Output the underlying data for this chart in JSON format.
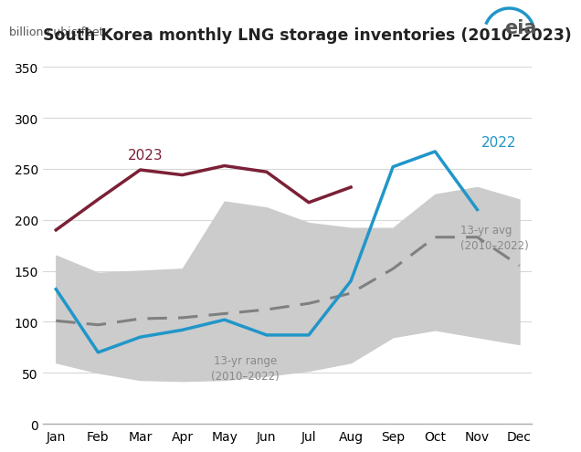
{
  "title": "South Korea monthly LNG storage inventories (2010–2023)",
  "ylabel": "billion cubic feet",
  "months": [
    "Jan",
    "Feb",
    "Mar",
    "Apr",
    "May",
    "Jun",
    "Jul",
    "Aug",
    "Sep",
    "Oct",
    "Nov",
    "Dec"
  ],
  "y2022": [
    132,
    70,
    85,
    92,
    102,
    87,
    87,
    140,
    252,
    267,
    210,
    null
  ],
  "y2023": [
    190,
    220,
    249,
    244,
    253,
    247,
    217,
    232,
    null,
    null,
    null,
    null
  ],
  "avg": [
    101,
    97,
    103,
    104,
    108,
    112,
    118,
    128,
    152,
    183,
    183,
    155
  ],
  "range_low": [
    60,
    50,
    43,
    42,
    43,
    47,
    52,
    60,
    85,
    92,
    85,
    78
  ],
  "range_high": [
    165,
    148,
    150,
    152,
    218,
    212,
    197,
    192,
    192,
    225,
    232,
    220
  ],
  "line_2022_color": "#2196c8",
  "line_2023_color": "#7b2036",
  "avg_color": "#808080",
  "range_color": "#cccccc",
  "ylim": [
    0,
    370
  ],
  "yticks": [
    0,
    50,
    100,
    150,
    200,
    250,
    300,
    350
  ],
  "background_color": "#ffffff",
  "label_2022": "2022",
  "label_2023": "2023",
  "label_avg": "13-yr avg\n(2010–2022)",
  "label_range": "13-yr range\n(2010–2022)",
  "eia_text": "eia",
  "eia_color": "#555555",
  "eia_arc_color": "#2196c8"
}
